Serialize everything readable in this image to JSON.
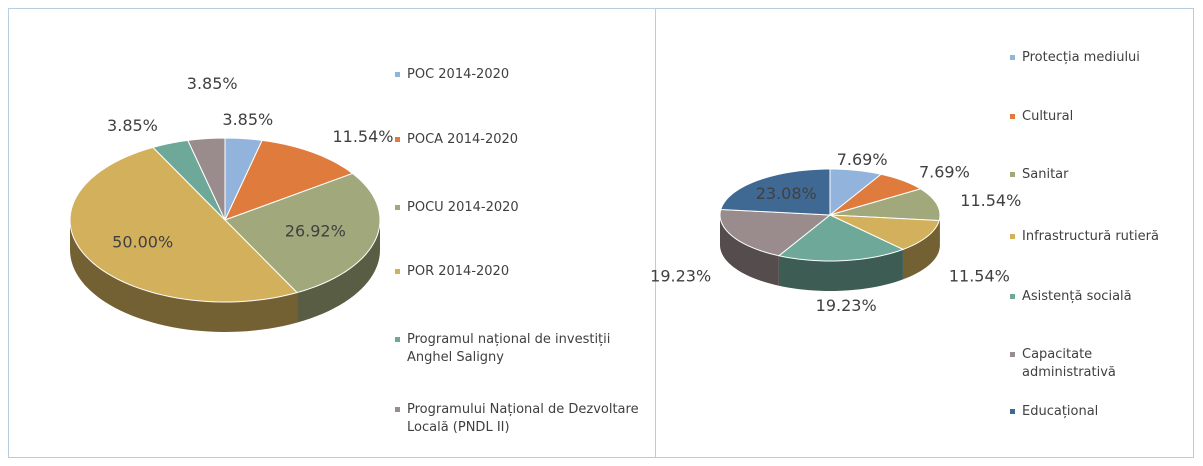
{
  "chart_data": [
    {
      "type": "pie",
      "categories": [
        "POC 2014-2020",
        "POCA 2014-2020",
        "POCU 2014-2020",
        "POR 2014-2020",
        "Programul național de investiții Anghel Saligny",
        "Programului Național de Dezvoltare Locală (PNDL II)"
      ],
      "values": [
        3.85,
        11.54,
        26.92,
        50,
        3.85,
        3.85
      ],
      "value_labels": [
        "3.85%",
        "11.54%",
        "26.92%",
        "50.00%",
        "3.85%",
        "3.85%"
      ],
      "colors": [
        "#92b4dc",
        "#df7b3c",
        "#a1a97c",
        "#d3b05c",
        "#6ea898",
        "#9a8c8c"
      ]
    },
    {
      "type": "pie",
      "categories": [
        "Protecția mediului",
        "Cultural",
        "Sanitar",
        "Infrastructură rutieră",
        "Asistență socială",
        "Capacitate administrativă",
        "Educațional"
      ],
      "values": [
        7.69,
        7.69,
        11.54,
        11.54,
        19.23,
        19.23,
        23.08
      ],
      "value_labels": [
        "7.69%",
        "7.69%",
        "11.54%",
        "11.54%",
        "19.23%",
        "19.23%",
        "23.08%"
      ],
      "colors": [
        "#92b4dc",
        "#df7b3c",
        "#a1a97c",
        "#d3b05c",
        "#6ea898",
        "#9a8c8c",
        "#3f6892"
      ]
    }
  ]
}
